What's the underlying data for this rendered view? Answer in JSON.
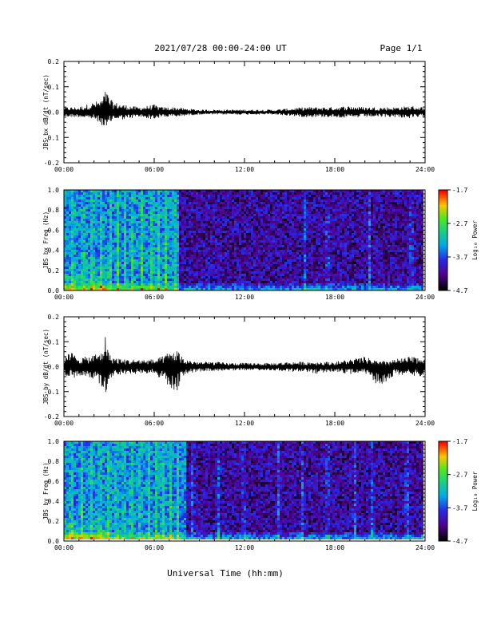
{
  "page": {
    "title": "2021/07/28  00:00-24:00 UT",
    "page_label": "Page 1/1",
    "xlabel": "Universal Time (hh:mm)"
  },
  "chart_data": [
    {
      "type": "line",
      "ylabel": "JBS bx dB/dt (nT/sec)",
      "xlim": [
        0,
        24
      ],
      "ylim": [
        -0.2,
        0.2
      ],
      "yticks": [
        "0.2",
        "0.1",
        "0.0",
        "-0.1",
        "-0.2"
      ],
      "xticks": [
        "00:00",
        "06:00",
        "12:00",
        "18:00",
        "24:00"
      ],
      "series": [
        {
          "x": [
            0,
            1,
            2,
            2.5,
            2.8,
            3,
            3.3,
            4,
            5,
            6,
            6.5,
            7,
            7.5,
            8,
            9,
            10,
            11,
            12,
            13,
            14,
            15,
            16,
            17,
            18,
            19,
            20,
            21,
            22,
            23,
            24
          ],
          "y_max": [
            0.02,
            0.02,
            0.04,
            0.05,
            0.09,
            0.06,
            0.04,
            0.03,
            0.02,
            0.03,
            0.02,
            0.02,
            0.02,
            0.015,
            0.01,
            0.01,
            0.01,
            0.01,
            0.01,
            0.01,
            0.015,
            0.02,
            0.02,
            0.02,
            0.025,
            0.02,
            0.02,
            0.02,
            0.025,
            0.02
          ],
          "y_min": [
            -0.02,
            -0.02,
            -0.03,
            -0.05,
            -0.09,
            -0.05,
            -0.03,
            -0.03,
            -0.02,
            -0.03,
            -0.02,
            -0.02,
            -0.02,
            -0.015,
            -0.01,
            -0.01,
            -0.01,
            -0.01,
            -0.01,
            -0.01,
            -0.015,
            -0.02,
            -0.02,
            -0.02,
            -0.025,
            -0.02,
            -0.02,
            -0.02,
            -0.025,
            -0.02
          ]
        }
      ]
    },
    {
      "type": "heatmap",
      "ylabel": "JBS bx Freq (Hz)",
      "xlim": [
        0,
        24
      ],
      "ylim": [
        0.0,
        1.0
      ],
      "yticks": [
        "1.0",
        "0.8",
        "0.6",
        "0.4",
        "0.2",
        "0.0"
      ],
      "xticks": [
        "00:00",
        "06:00",
        "12:00",
        "18:00",
        "24:00"
      ],
      "colorbar_label": "Log₁₀ Power",
      "colorbar_ticks": [
        "-1.7",
        "-2.7",
        "-3.7",
        "-4.7"
      ],
      "crange": [
        -4.7,
        -1.7
      ],
      "quiet_from_hour": 7.7,
      "ridges_hours": [
        0.6,
        1.3,
        1.9,
        2.5,
        3.1,
        3.6,
        4.1,
        4.6,
        5.2,
        5.9,
        6.3,
        6.8,
        7.4,
        16.1,
        17.6,
        20.4,
        23.2
      ]
    },
    {
      "type": "line",
      "ylabel": "JBS by dB/dt (nT/sec)",
      "xlim": [
        0,
        24
      ],
      "ylim": [
        -0.2,
        0.2
      ],
      "yticks": [
        "0.2",
        "0.1",
        "0.0",
        "-0.1",
        "-0.2"
      ],
      "xticks": [
        "00:00",
        "06:00",
        "12:00",
        "18:00",
        "24:00"
      ],
      "series": [
        {
          "x": [
            0,
            0.5,
            1,
            1.5,
            2,
            2.5,
            2.8,
            3,
            3.3,
            4,
            5,
            6,
            6.5,
            7,
            7.5,
            8,
            9,
            10,
            11,
            12,
            13,
            14,
            15,
            16,
            17,
            18,
            19,
            20,
            21,
            22,
            23,
            24
          ],
          "y_max": [
            0.04,
            0.06,
            0.04,
            0.04,
            0.05,
            0.06,
            0.14,
            0.05,
            0.04,
            0.03,
            0.03,
            0.03,
            0.04,
            0.06,
            0.07,
            0.03,
            0.02,
            0.02,
            0.015,
            0.015,
            0.015,
            0.015,
            0.02,
            0.02,
            0.02,
            0.02,
            0.03,
            0.04,
            0.02,
            0.03,
            0.04,
            0.04
          ],
          "y_min": [
            -0.04,
            -0.05,
            -0.04,
            -0.04,
            -0.05,
            -0.08,
            -0.11,
            -0.06,
            -0.04,
            -0.03,
            -0.03,
            -0.03,
            -0.05,
            -0.08,
            -0.1,
            -0.03,
            -0.02,
            -0.02,
            -0.015,
            -0.015,
            -0.015,
            -0.015,
            -0.02,
            -0.02,
            -0.03,
            -0.02,
            -0.03,
            -0.03,
            -0.09,
            -0.03,
            -0.04,
            -0.04
          ]
        }
      ]
    },
    {
      "type": "heatmap",
      "ylabel": "JBS by Freq (Hz)",
      "xlim": [
        0,
        24
      ],
      "ylim": [
        0.0,
        1.0
      ],
      "yticks": [
        "1.0",
        "0.8",
        "0.6",
        "0.4",
        "0.2",
        "0.0"
      ],
      "xticks": [
        "00:00",
        "06:00",
        "12:00",
        "18:00",
        "24:00"
      ],
      "colorbar_label": "Log₁₀ Power",
      "colorbar_ticks": [
        "-1.7",
        "-2.7",
        "-3.7",
        "-4.7"
      ],
      "crange": [
        -4.7,
        -1.7
      ],
      "quiet_from_hour": 8.2,
      "ridges_hours": [
        0.5,
        1.2,
        1.8,
        2.4,
        3.0,
        3.5,
        4.0,
        4.5,
        5.1,
        5.7,
        6.2,
        6.6,
        7.1,
        7.6,
        8.6,
        10.3,
        12.0,
        14.3,
        15.9,
        17.6,
        19.4,
        20.6,
        22.9
      ]
    }
  ]
}
